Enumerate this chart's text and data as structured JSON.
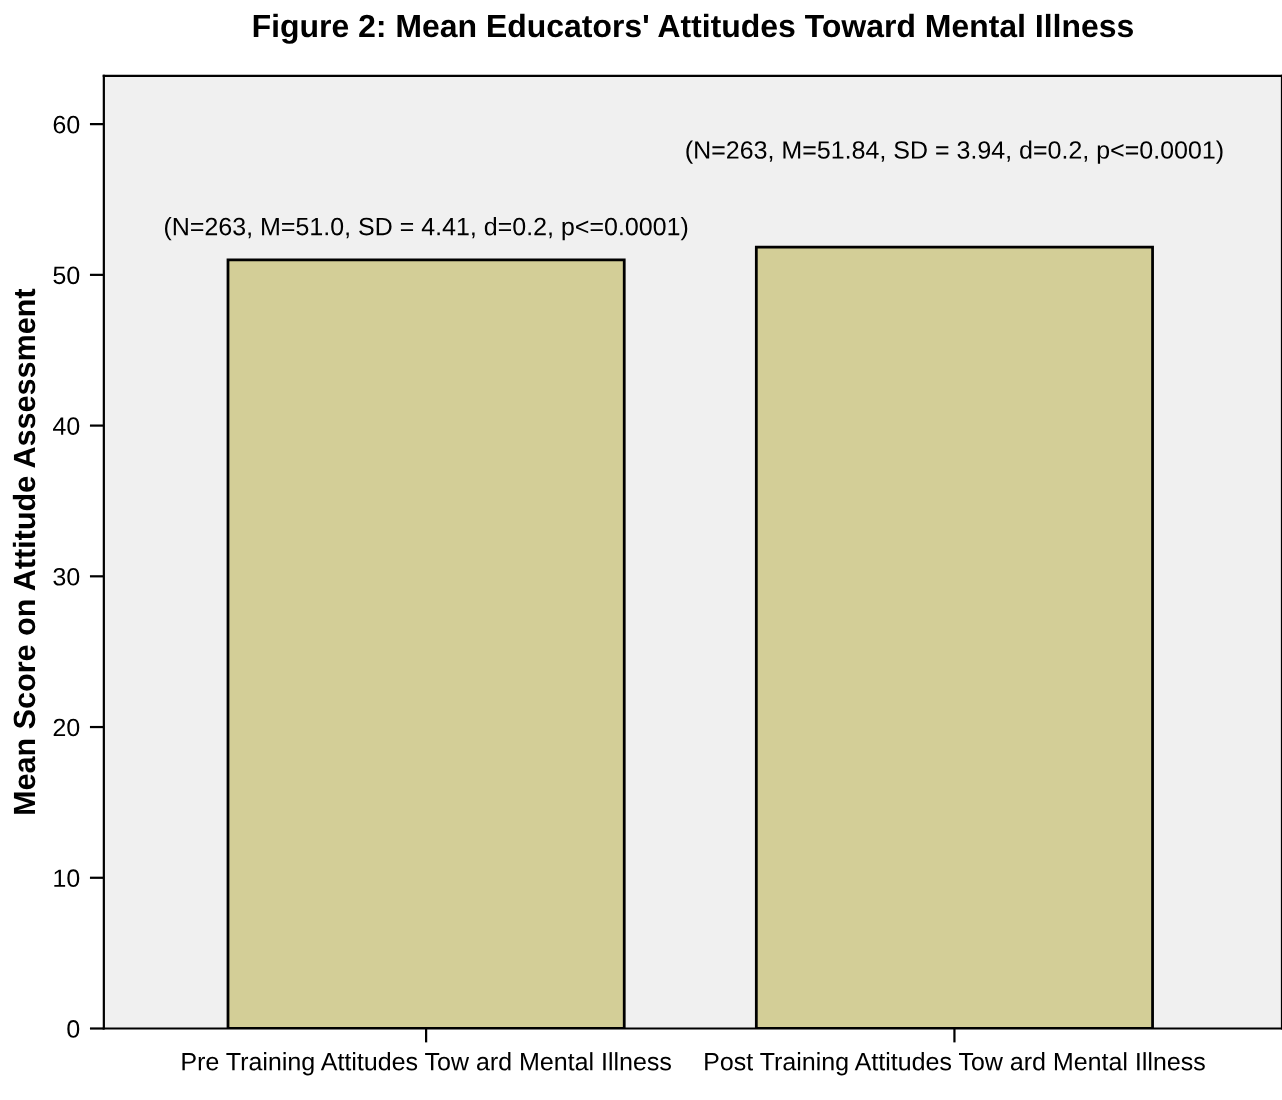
{
  "chart_data": {
    "type": "bar",
    "title": "Figure 2: Mean Educators' Attitudes Toward Mental Illness",
    "ylabel": "Mean Score on Attitude Assessment",
    "categories": [
      "Pre Training Attitudes Tow ard Mental Illness",
      "Post Training Attitudes Tow ard Mental Illness"
    ],
    "values": [
      51.0,
      51.84
    ],
    "color": "#d3ce97",
    "ylim": [
      0,
      63.2
    ],
    "yticks": [
      0,
      10,
      20,
      30,
      40,
      50,
      60
    ],
    "grid": false,
    "annotations": [
      "(N=263, M=51.0, SD = 4.41, d=0.2, p<=0.0001)",
      "(N=263, M=51.84, SD = 3.94, d=0.2, p<=0.0001)"
    ]
  }
}
